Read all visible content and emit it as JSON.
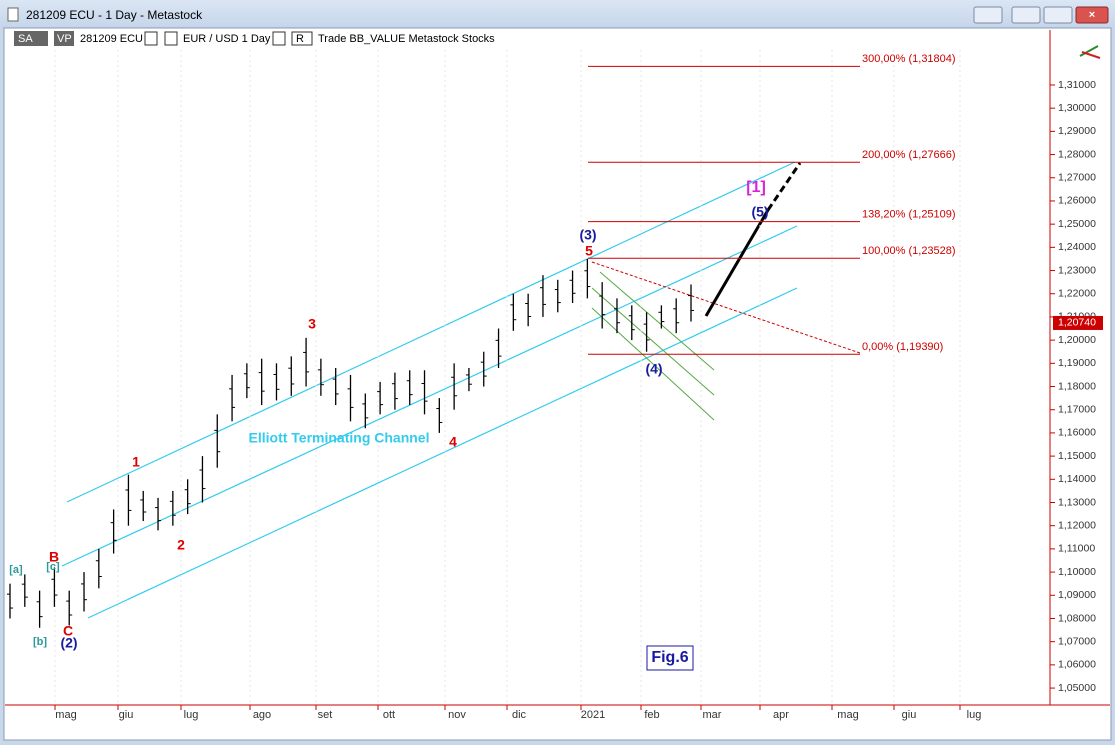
{
  "window": {
    "title": "281209 ECU - 1 Day - Metastock",
    "toolbar": [
      "SA",
      "VP",
      "281209 ECU",
      "EUR / USD  1 Day",
      "R",
      "Trade  BB_VALUE  Metastock  Stocks"
    ]
  },
  "chart_data": {
    "type": "ohlc",
    "series": [
      {
        "name": "281209 ECU",
        "color": "#000000",
        "high": [
          1.095,
          1.099,
          1.092,
          1.102,
          1.092,
          1.1,
          1.11,
          1.127,
          1.142,
          1.135,
          1.132,
          1.135,
          1.14,
          1.15,
          1.168,
          1.185,
          1.19,
          1.192,
          1.19,
          1.193,
          1.201,
          1.192,
          1.188,
          1.185,
          1.177,
          1.182,
          1.186,
          1.187,
          1.187,
          1.175,
          1.19,
          1.188,
          1.195,
          1.205,
          1.22,
          1.22,
          1.228,
          1.226,
          1.23,
          1.235,
          1.225,
          1.218,
          1.215,
          1.212,
          1.215,
          1.218,
          1.224
        ],
        "low": [
          1.08,
          1.085,
          1.076,
          1.085,
          1.077,
          1.083,
          1.093,
          1.108,
          1.12,
          1.122,
          1.118,
          1.12,
          1.125,
          1.13,
          1.145,
          1.165,
          1.175,
          1.172,
          1.174,
          1.176,
          1.18,
          1.176,
          1.172,
          1.165,
          1.162,
          1.168,
          1.17,
          1.172,
          1.168,
          1.16,
          1.17,
          1.178,
          1.18,
          1.188,
          1.204,
          1.206,
          1.21,
          1.212,
          1.216,
          1.218,
          1.205,
          1.203,
          1.2,
          1.195,
          1.205,
          1.203,
          1.208
        ]
      }
    ],
    "last_price": {
      "value": 1.2074,
      "label": "1,20740"
    },
    "fib_levels": {
      "values": [
        1.31804,
        1.27666,
        1.25109,
        1.23528,
        1.1939
      ],
      "value_labels": [
        "300,00% (1,31804)",
        "200,00% (1,27666)",
        "138,20% (1,25109)",
        "100,00% (1,23528)",
        "0,00% (1,19390)"
      ],
      "color": "#cc0000"
    },
    "x_labels": [
      "mag",
      "giu",
      "lug",
      "ago",
      "set",
      "ott",
      "nov",
      "dic",
      "2021",
      "feb",
      "mar",
      "apr",
      "mag",
      "giu",
      "lug"
    ],
    "annotations": [
      "[a]",
      "B",
      "[c]",
      "[b]",
      "C",
      "(2)",
      "1",
      "2",
      "3",
      "4",
      "Elliott Terminating Channel",
      "(3)",
      "5",
      "(4)",
      "(5)",
      "[1]",
      "Fig.6"
    ],
    "ylim": [
      1.0427,
      1.3337
    ],
    "yticks": [
      {
        "value": 1.05,
        "label": "1,05000"
      },
      {
        "value": 1.06,
        "label": "1,06000"
      },
      {
        "value": 1.07,
        "label": "1,07000"
      },
      {
        "value": 1.08,
        "label": "1,08000"
      },
      {
        "value": 1.09,
        "label": "1,09000"
      },
      {
        "value": 1.1,
        "label": "1,10000"
      },
      {
        "value": 1.11,
        "label": "1,11000"
      },
      {
        "value": 1.12,
        "label": "1,12000"
      },
      {
        "value": 1.13,
        "label": "1,13000"
      },
      {
        "value": 1.14,
        "label": "1,14000"
      },
      {
        "value": 1.15,
        "label": "1,15000"
      },
      {
        "value": 1.16,
        "label": "1,16000"
      },
      {
        "value": 1.17,
        "label": "1,17000"
      },
      {
        "value": 1.18,
        "label": "1,18000"
      },
      {
        "value": 1.19,
        "label": "1,19000"
      },
      {
        "value": 1.2,
        "label": "1,20000"
      },
      {
        "value": 1.21,
        "label": "1,21000"
      },
      {
        "value": 1.22,
        "label": "1,22000"
      },
      {
        "value": 1.23,
        "label": "1,23000"
      },
      {
        "value": 1.24,
        "label": "1,24000"
      },
      {
        "value": 1.25,
        "label": "1,25000"
      },
      {
        "value": 1.26,
        "label": "1,26000"
      },
      {
        "value": 1.27,
        "label": "1,27000"
      },
      {
        "value": 1.28,
        "label": "1,28000"
      },
      {
        "value": 1.29,
        "label": "1,29000"
      },
      {
        "value": 1.3,
        "label": "1,30000"
      },
      {
        "value": 1.31,
        "label": "1,31000"
      }
    ]
  }
}
